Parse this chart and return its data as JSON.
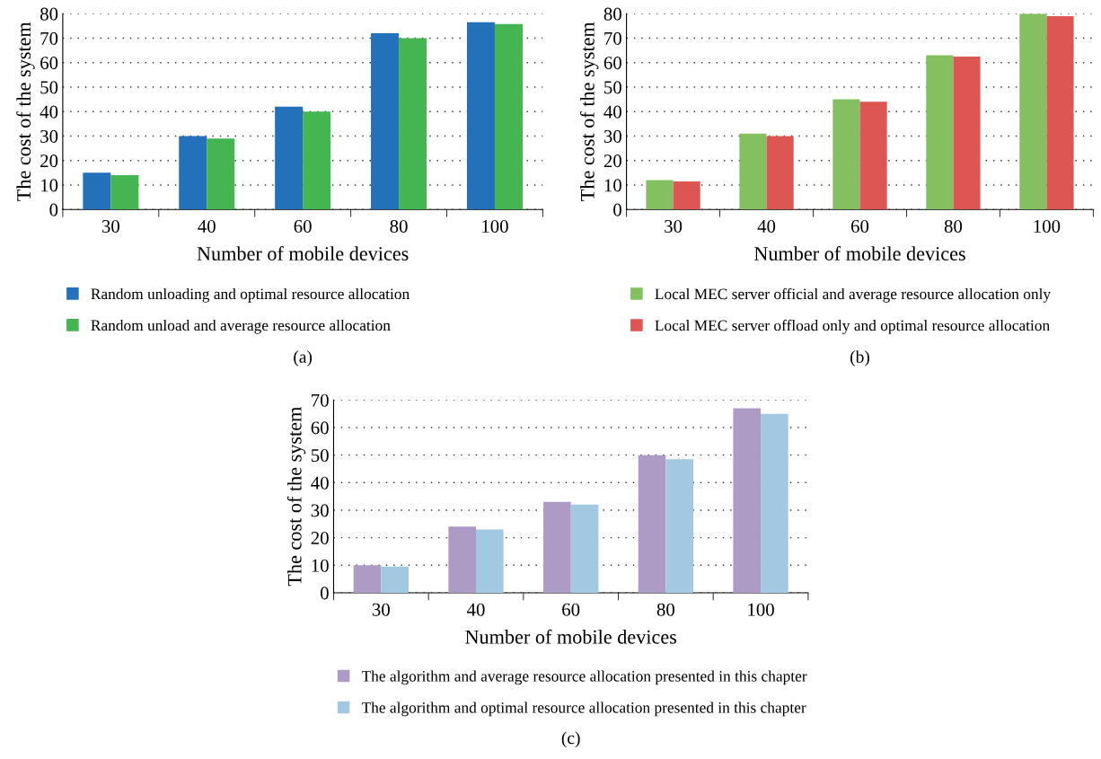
{
  "chart_data": [
    {
      "type": "bar",
      "xlabel": "Number of mobile devices",
      "ylabel": "The cost of the system",
      "categories": [
        "30",
        "40",
        "60",
        "80",
        "100"
      ],
      "series": [
        {
          "name": "Random unloading and optimal resource allocation",
          "color": "#2371bb",
          "values": [
            15,
            30,
            42,
            72,
            76.5
          ]
        },
        {
          "name": "Random unload and average resource allocation",
          "color": "#44b550",
          "values": [
            14,
            29,
            40,
            70,
            75.8
          ]
        }
      ],
      "ylim": [
        0,
        80
      ],
      "yticks": [
        0,
        10,
        20,
        30,
        40,
        50,
        60,
        70,
        80
      ],
      "grid": "y",
      "legend": "bottom",
      "annotations": [
        "(a)"
      ]
    },
    {
      "type": "bar",
      "xlabel": "Number of mobile devices",
      "ylabel": "The cost of the system",
      "categories": [
        "30",
        "40",
        "60",
        "80",
        "100"
      ],
      "series": [
        {
          "name": "Local MEC server official and average resource allocation only",
          "color": "#84c060",
          "values": [
            12,
            31,
            45,
            63,
            80
          ]
        },
        {
          "name": "Local MEC server offload only and optimal resource allocation",
          "color": "#dd5652",
          "values": [
            11.5,
            30,
            44,
            62.5,
            79
          ]
        }
      ],
      "ylim": [
        0,
        80
      ],
      "yticks": [
        0,
        10,
        20,
        30,
        40,
        50,
        60,
        70,
        80
      ],
      "grid": "y",
      "legend": "bottom",
      "annotations": [
        "(b)"
      ]
    },
    {
      "type": "bar",
      "xlabel": "Number of mobile devices",
      "ylabel": "The cost of the system",
      "categories": [
        "30",
        "40",
        "60",
        "80",
        "100"
      ],
      "series": [
        {
          "name": "The algorithm and average resource allocation presented in this chapter",
          "color": "#ae9bc5",
          "values": [
            10,
            24,
            33,
            50,
            67
          ]
        },
        {
          "name": "The algorithm and optimal resource allocation presented in this chapter",
          "color": "#a3c8e2",
          "values": [
            9.5,
            23,
            32,
            48.5,
            65
          ]
        }
      ],
      "ylim": [
        0,
        70
      ],
      "yticks": [
        0,
        10,
        20,
        30,
        40,
        50,
        60,
        70
      ],
      "grid": "y",
      "legend": "bottom",
      "annotations": [
        "(c)"
      ]
    }
  ]
}
